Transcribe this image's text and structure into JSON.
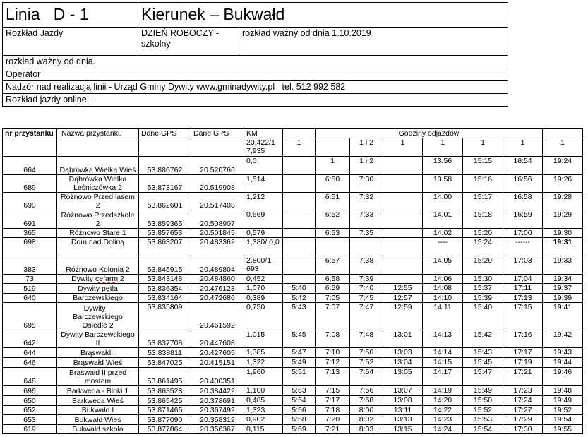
{
  "header": {
    "line": "Linia   D - 1",
    "direction": "Kierunek – Bukwałd",
    "schedule_label": "Rozkład Jazdy",
    "day_type": "DZIEŃ ROBOCZY - szkolny",
    "valid_from": "rozkład ważny od dnia 1.10.2019",
    "valid_from_empty": "rozkład ważny od dnia.",
    "operator": "Operator",
    "supervision": "Nadzór nad realizacją linii - Urząd Gminy Dywity www.gminadywity.pl   tel. 512 992 582",
    "online": "Rozkład jazdy online –"
  },
  "table": {
    "columns": [
      "nr przystanku",
      "Nazwa przystanku",
      "Dane GPS",
      "Dane GPS",
      "KM",
      "",
      "Godziny odjazdów",
      ""
    ],
    "subheader": [
      "",
      "",
      "",
      "",
      "20,422/1 7,935",
      "1",
      "",
      "1 i 2",
      "1",
      "1",
      "1",
      "1",
      "1"
    ],
    "rows": [
      [
        "664",
        "Dąbrówka Wielka Wieś",
        "53.886762",
        "20.520766",
        "0,0",
        "",
        "1",
        "1 i 2",
        "",
        "13.56",
        "15:15",
        "16:54",
        "19:24"
      ],
      [
        "689",
        "Dąbrówka Wielka Leśniczówka 2",
        "53.873167",
        "20.519908",
        "1,514",
        "",
        "6:50",
        "7:30",
        "",
        "13.58",
        "15:16",
        "16:56",
        "19:26"
      ],
      [
        "690",
        "Różnowo Przed lasem 2",
        "53.862601",
        "20.517408",
        "1,212",
        "",
        "6:51",
        "7:32",
        "",
        "14.00",
        "15:17",
        "16:58",
        "19:28"
      ],
      [
        "691",
        "Różnowo Przedszkole 2",
        "53.859365",
        "20.508907",
        "0,669",
        "",
        "6:52",
        "7:33",
        "",
        "14.01",
        "15:18",
        "16:59",
        "19:29"
      ],
      [
        "365",
        "Różnowo Stare 1",
        "53.857653",
        "20.501845",
        "0,579",
        "",
        "6:53",
        "7:35",
        "",
        "14.02",
        "15:20",
        "17:00",
        "19:30"
      ],
      [
        "698",
        "Dom nad Doliną",
        "53.863207",
        "20.483362",
        "1,380/ 0,0",
        "",
        "",
        "",
        "",
        "----",
        "15:24",
        "------",
        "19:31"
      ],
      [
        "383",
        "Różnowo Kolonia 2",
        "53.845915",
        "20.489804",
        "2,800/1, 693",
        "",
        "6:57",
        "7:38",
        "",
        "14.05",
        "15:29",
        "17:03",
        "19:33"
      ],
      [
        "73",
        "Dywity cefarm 2",
        "53.843148",
        "20.484860",
        "0,452",
        "",
        "6:58",
        "7:39",
        "",
        "14:06",
        "15:30",
        "17:04",
        "19:34"
      ],
      [
        "519",
        "Dywity pętla",
        "53.836354",
        "20.476123",
        "1,070",
        "5:40",
        "6:59",
        "7:40",
        "12:55",
        "14:08",
        "15:37",
        "17:11",
        "19:37"
      ],
      [
        "640",
        "Barczewskiego",
        "53.834164",
        "20.472686",
        "0,389",
        "5:42",
        "7:05",
        "7:45",
        "12:57",
        "14:10",
        "15:39",
        "17:13",
        "19:39"
      ],
      [
        "695",
        "Dywity – Barczewskiego Osiedle 2",
        "53.835809",
        "20.461592",
        "0,750",
        "5:43",
        "7:07",
        "7:47",
        "12:59",
        "14:11",
        "15:40",
        "17:15",
        "19:41"
      ],
      [
        "642",
        "Dywity Barczewskiego II",
        "53.837708",
        "20.447608",
        "1,015",
        "5:45",
        "7:08",
        "7:48",
        "13:01",
        "14:13",
        "15:42",
        "17:16",
        "19:42"
      ],
      [
        "644",
        "Brąswałd I",
        "53.838811",
        "20.427605",
        "1,385",
        "5:47",
        "7:10",
        "7:50",
        "13:03",
        "14:14",
        "15:43",
        "17:17",
        "19:43"
      ],
      [
        "646",
        "Brąswałd Wieś",
        "53.847025",
        "20.415151",
        "1,322",
        "5:49",
        "7:12",
        "7:52",
        "13:04",
        "14:15",
        "15:45",
        "17:19",
        "19:44"
      ],
      [
        "648",
        "Brąswałd II przed mostem",
        "53.861495",
        "20.400351",
        "1,960",
        "5:51",
        "7:13",
        "7:54",
        "13:05",
        "14:17",
        "15:47",
        "17:21",
        "19:46"
      ],
      [
        "696",
        "Barkweda - Bloki 1",
        "53.863528",
        "20.384422",
        "1,100",
        "5:53",
        "7:15",
        "7:56",
        "13:07",
        "14:19",
        "15:49",
        "17:23",
        "19:48"
      ],
      [
        "650",
        "Barkweda Wieś",
        "53.865425",
        "20.378691",
        "0,485",
        "5:54",
        "7:17",
        "7:58",
        "13:08",
        "14:20",
        "15:50",
        "17:24",
        "19:49"
      ],
      [
        "652",
        "Bukwałd I",
        "53.871465",
        "20.367492",
        "1,323",
        "5:56",
        "7:18",
        "8:00",
        "13:11",
        "14:22",
        "15:52",
        "17:27",
        "19:52"
      ],
      [
        "653",
        "Bukwałd Wieś",
        "53.877090",
        "20.358312",
        "0,902",
        "5:58",
        "7:20",
        "8:02",
        "13:13",
        "14:23",
        "15:53",
        "17:29",
        "19:54"
      ],
      [
        "619",
        "Bukwałd szkoła",
        "53.877864",
        "20.356367",
        "0,115",
        "5:59",
        "7:21",
        "8:03",
        "13:15",
        "14:24",
        "15:54",
        "17:30",
        "19:55"
      ]
    ]
  }
}
